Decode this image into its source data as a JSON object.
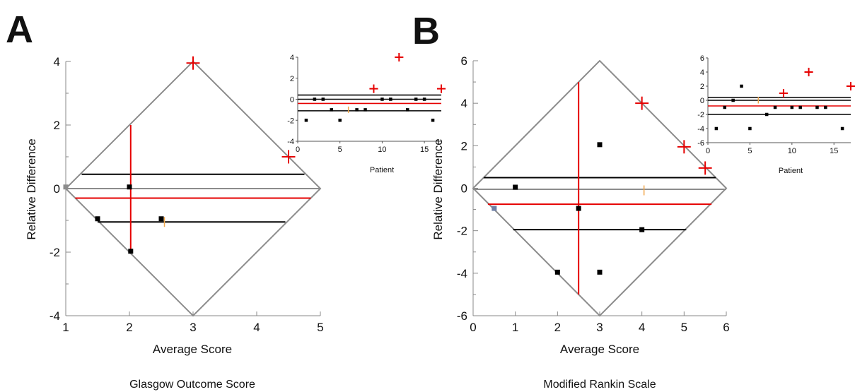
{
  "colors": {
    "red": "#e60000",
    "black": "#000000",
    "gray": "#8c8c8c",
    "orange": "#f0a64a",
    "blue": "#6e7fa6"
  },
  "chart_data": [
    {
      "panel": "A",
      "caption": "Glasgow Outcome Score",
      "type": "scatter",
      "xlabel": "Average Score",
      "ylabel": "Relative Difference",
      "xlim": [
        1,
        5
      ],
      "ylim": [
        -4,
        4
      ],
      "xticks": [
        "1",
        "2",
        "3",
        "4",
        "5"
      ],
      "yticks": [
        "-4",
        "-2",
        "0",
        "2",
        "4"
      ],
      "diamond": [
        [
          1,
          0
        ],
        [
          3,
          4
        ],
        [
          5,
          0
        ],
        [
          3,
          -4
        ]
      ],
      "bias_line": {
        "y": -0.3,
        "x_range": [
          1.15,
          4.85
        ],
        "color": "red"
      },
      "zero_line": {
        "y": 0,
        "x_range": [
          1,
          5
        ],
        "color": "gray"
      },
      "limit_lines": [
        {
          "y": 0.45,
          "x_range": [
            1.25,
            4.75
          ],
          "color": "black"
        },
        {
          "y": -1.05,
          "x_range": [
            1.5,
            4.45
          ],
          "color": "black"
        }
      ],
      "vertical_line": {
        "x": 2.02,
        "y_range": [
          -2,
          2
        ],
        "color": "red"
      },
      "points": [
        {
          "x": 1.0,
          "y": 0.05,
          "marker": "square",
          "color": "gray"
        },
        {
          "x": 2.0,
          "y": 0.05,
          "marker": "square",
          "color": "black"
        },
        {
          "x": 1.5,
          "y": -0.95,
          "marker": "square",
          "color": "black"
        },
        {
          "x": 2.5,
          "y": -0.95,
          "marker": "square",
          "color": "black"
        },
        {
          "x": 2.55,
          "y": -1.05,
          "marker": "tick",
          "color": "orange"
        },
        {
          "x": 2.02,
          "y": -1.97,
          "marker": "square",
          "color": "black"
        },
        {
          "x": 3.0,
          "y": 3.95,
          "marker": "plus",
          "color": "red"
        },
        {
          "x": 4.5,
          "y": 1.0,
          "marker": "plus",
          "color": "red"
        }
      ],
      "inset": {
        "type": "scatter",
        "xlabel": "Patient",
        "xlim": [
          0,
          17
        ],
        "ylim": [
          -4,
          4
        ],
        "xticks": [
          "0",
          "5",
          "10",
          "15"
        ],
        "yticks": [
          "-4",
          "-2",
          "0",
          "2",
          "4"
        ],
        "hlines": [
          {
            "y": 0.4,
            "color": "black"
          },
          {
            "y": 0,
            "color": "black"
          },
          {
            "y": -0.4,
            "color": "red"
          },
          {
            "y": -1.1,
            "color": "black"
          }
        ],
        "points": [
          {
            "x": 1,
            "y": -2,
            "marker": "square",
            "color": "black"
          },
          {
            "x": 2,
            "y": 0,
            "marker": "square",
            "color": "black"
          },
          {
            "x": 3,
            "y": 0,
            "marker": "square",
            "color": "black"
          },
          {
            "x": 4,
            "y": -1,
            "marker": "square",
            "color": "black"
          },
          {
            "x": 5,
            "y": -2,
            "marker": "square",
            "color": "black"
          },
          {
            "x": 6,
            "y": -1,
            "marker": "tick",
            "color": "orange"
          },
          {
            "x": 7,
            "y": -1,
            "marker": "square",
            "color": "black"
          },
          {
            "x": 8,
            "y": -1,
            "marker": "square",
            "color": "black"
          },
          {
            "x": 9,
            "y": 1,
            "marker": "plus",
            "color": "red"
          },
          {
            "x": 10,
            "y": 0,
            "marker": "square",
            "color": "black"
          },
          {
            "x": 11,
            "y": 0,
            "marker": "square",
            "color": "black"
          },
          {
            "x": 12,
            "y": 4,
            "marker": "plus",
            "color": "red"
          },
          {
            "x": 13,
            "y": -1,
            "marker": "square",
            "color": "black"
          },
          {
            "x": 14,
            "y": 0,
            "marker": "square",
            "color": "black"
          },
          {
            "x": 15,
            "y": 0,
            "marker": "square",
            "color": "black"
          },
          {
            "x": 16,
            "y": -2,
            "marker": "square",
            "color": "black"
          },
          {
            "x": 17,
            "y": 1,
            "marker": "plus",
            "color": "red"
          }
        ]
      }
    },
    {
      "panel": "B",
      "caption": "Modified Rankin Scale",
      "type": "scatter",
      "xlabel": "Average Score",
      "ylabel": "Relative Difference",
      "xlim": [
        0,
        6
      ],
      "ylim": [
        -6,
        6
      ],
      "xticks": [
        "0",
        "1",
        "2",
        "3",
        "4",
        "5",
        "6"
      ],
      "yticks": [
        "-6",
        "-4",
        "-2",
        "0",
        "2",
        "4",
        "6"
      ],
      "diamond": [
        [
          0,
          0
        ],
        [
          3,
          6
        ],
        [
          6,
          0
        ],
        [
          3,
          -6
        ]
      ],
      "bias_line": {
        "y": -0.75,
        "x_range": [
          0.35,
          5.65
        ],
        "color": "red"
      },
      "zero_line": {
        "y": -0.05,
        "x_range": [
          0,
          6
        ],
        "color": "gray"
      },
      "limit_lines": [
        {
          "y": 0.5,
          "x_range": [
            0.25,
            5.75
          ],
          "color": "black"
        },
        {
          "y": -1.95,
          "x_range": [
            0.95,
            5.05
          ],
          "color": "black"
        }
      ],
      "vertical_line": {
        "x": 2.5,
        "y_range": [
          -5,
          5
        ],
        "color": "red"
      },
      "points": [
        {
          "x": 1.0,
          "y": 0.05,
          "marker": "square",
          "color": "black"
        },
        {
          "x": 0.5,
          "y": -0.95,
          "marker": "square",
          "color": "blue"
        },
        {
          "x": 2.5,
          "y": -0.95,
          "marker": "square",
          "color": "black"
        },
        {
          "x": 3.0,
          "y": 2.05,
          "marker": "square",
          "color": "black"
        },
        {
          "x": 4.0,
          "y": -1.95,
          "marker": "square",
          "color": "black"
        },
        {
          "x": 2.0,
          "y": -3.95,
          "marker": "square",
          "color": "black"
        },
        {
          "x": 3.0,
          "y": -3.95,
          "marker": "square",
          "color": "black"
        },
        {
          "x": 4.05,
          "y": -0.1,
          "marker": "tick",
          "color": "orange"
        },
        {
          "x": 4.0,
          "y": 4.0,
          "marker": "plus",
          "color": "red"
        },
        {
          "x": 5.0,
          "y": 1.95,
          "marker": "plus",
          "color": "red"
        },
        {
          "x": 5.5,
          "y": 0.95,
          "marker": "plus",
          "color": "red"
        }
      ],
      "inset": {
        "type": "scatter",
        "xlabel": "Patient",
        "xlim": [
          0,
          17
        ],
        "ylim": [
          -6,
          6
        ],
        "xticks": [
          "0",
          "5",
          "10",
          "15"
        ],
        "yticks": [
          "-6",
          "-4",
          "-2",
          "0",
          "2",
          "4",
          "6"
        ],
        "hlines": [
          {
            "y": 0.4,
            "color": "black"
          },
          {
            "y": 0,
            "color": "black"
          },
          {
            "y": -0.8,
            "color": "red"
          },
          {
            "y": -2,
            "color": "black"
          }
        ],
        "points": [
          {
            "x": 1,
            "y": -4,
            "marker": "square",
            "color": "black"
          },
          {
            "x": 2,
            "y": -1,
            "marker": "square",
            "color": "black"
          },
          {
            "x": 3,
            "y": 0,
            "marker": "square",
            "color": "black"
          },
          {
            "x": 4,
            "y": 2,
            "marker": "square",
            "color": "black"
          },
          {
            "x": 5,
            "y": -4,
            "marker": "square",
            "color": "black"
          },
          {
            "x": 6,
            "y": 0,
            "marker": "tick",
            "color": "orange"
          },
          {
            "x": 7,
            "y": -2,
            "marker": "square",
            "color": "black"
          },
          {
            "x": 8,
            "y": -1,
            "marker": "square",
            "color": "black"
          },
          {
            "x": 9,
            "y": 1,
            "marker": "plus",
            "color": "red"
          },
          {
            "x": 10,
            "y": -1,
            "marker": "square",
            "color": "black"
          },
          {
            "x": 11,
            "y": -1,
            "marker": "square",
            "color": "black"
          },
          {
            "x": 12,
            "y": 4,
            "marker": "plus",
            "color": "red"
          },
          {
            "x": 13,
            "y": -1,
            "marker": "square",
            "color": "black"
          },
          {
            "x": 14,
            "y": -1,
            "marker": "square",
            "color": "black"
          },
          {
            "x": 16,
            "y": -4,
            "marker": "square",
            "color": "black"
          },
          {
            "x": 17,
            "y": 2,
            "marker": "plus",
            "color": "red"
          }
        ]
      }
    }
  ]
}
